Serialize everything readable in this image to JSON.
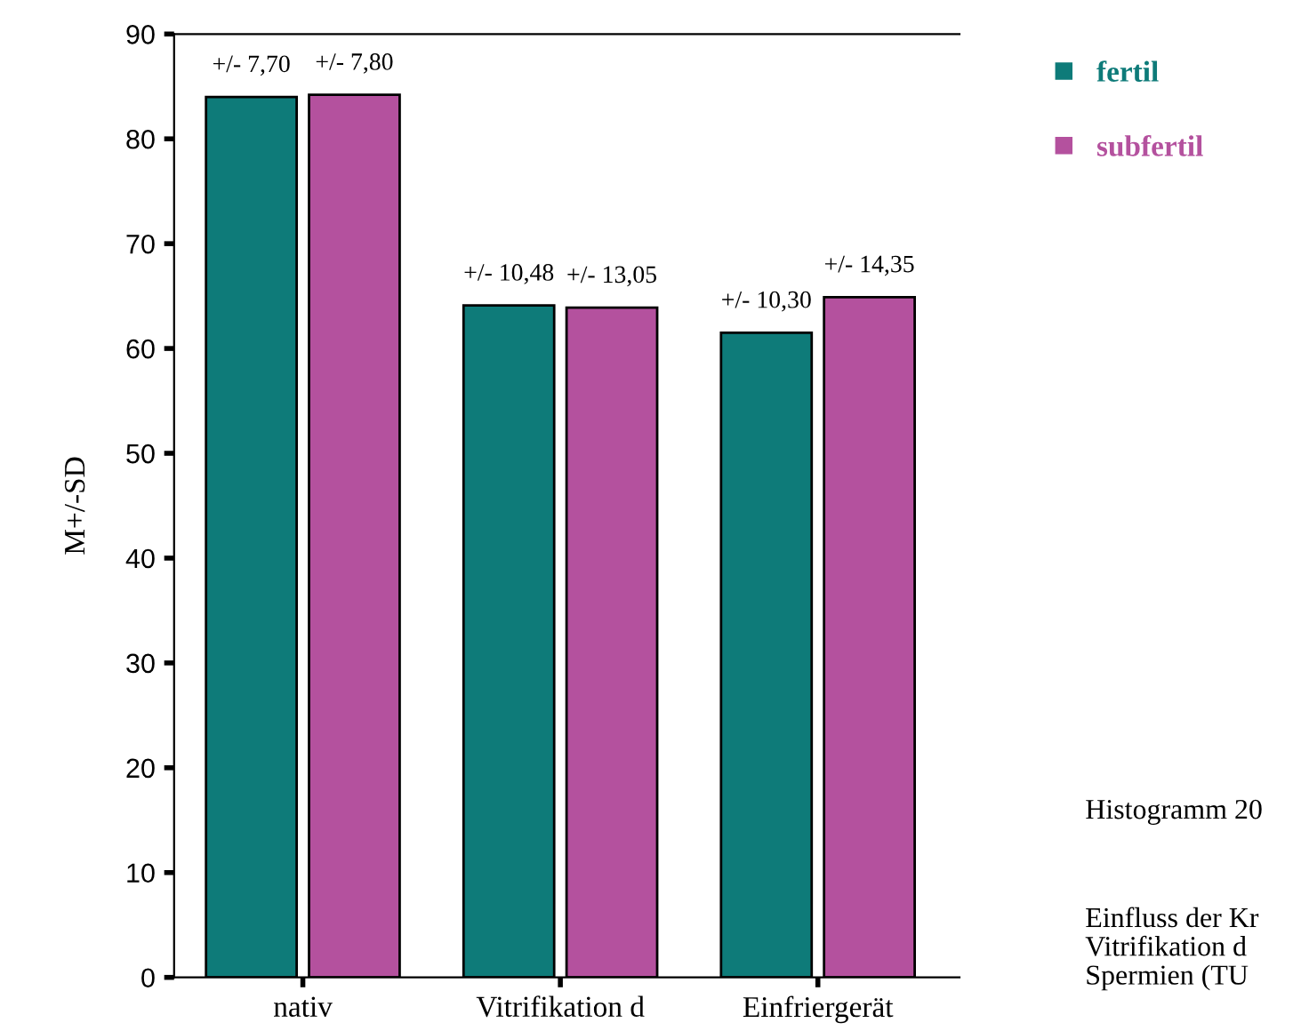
{
  "chart_data": {
    "type": "bar",
    "ylabel": "M+/-SD",
    "categories": [
      "nativ",
      "Vitrifikation d",
      "Einfriergerät"
    ],
    "series": [
      {
        "name": "fertil",
        "color": "#0e7b79",
        "values": [
          84,
          64.1,
          61.5
        ]
      },
      {
        "name": "subfertil",
        "color": "#b4519e",
        "values": [
          84.2,
          63.9,
          64.9
        ]
      }
    ],
    "ylim": [
      0,
      90
    ],
    "yticks": [
      0,
      10,
      20,
      30,
      40,
      50,
      60,
      70,
      80,
      90
    ],
    "grid": false,
    "legend": "top right",
    "annotations": [
      {
        "text": "+/- 7,70",
        "x": "nativ",
        "y": 84
      },
      {
        "text": "+/- 7,80",
        "x": "nativ",
        "y": 84.2
      },
      {
        "text": "+/- 10,48",
        "x": "Vitrifikation d",
        "y": 64.1
      },
      {
        "text": "+/- 13,05",
        "x": "Vitrifikation d",
        "y": 63.9
      },
      {
        "text": "+/- 10,30",
        "x": "Einfriergerät",
        "y": 61.5
      },
      {
        "text": "+/- 14,35",
        "x": "Einfriergerät",
        "y": 64.9
      },
      "Histogramm 20",
      "Einfluss der Kr\nVitrifikation d\nSpermien (TU"
    ]
  }
}
